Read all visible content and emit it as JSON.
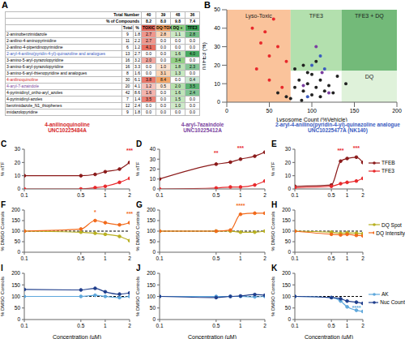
{
  "table": {
    "panel": "A",
    "summary": [
      {
        "label": "Total Number",
        "values": [
          "40",
          "39",
          "48",
          "36"
        ]
      },
      {
        "label": "% of Compounds",
        "values": [
          "8.2",
          "8.0",
          "9.8",
          "7.4"
        ]
      }
    ],
    "columns": [
      {
        "label": "Total"
      },
      {
        "label": "%"
      },
      {
        "label": "TOXIC",
        "color": "#e8685a"
      },
      {
        "label": "DQ-TOX",
        "color": "#f4a261"
      },
      {
        "label": "DQ +",
        "color": "#8cce7e"
      },
      {
        "label": "TFE3",
        "color": "#3ea55a"
      }
    ],
    "rows": [
      {
        "name": "2-aminobenzimidazole",
        "values": [
          "9",
          "1.8",
          "2.7",
          "2.8",
          "1.1",
          "2.8"
        ]
      },
      {
        "name": "2-anilino-4-aminopyrimidine",
        "values": [
          "11",
          "2.2",
          "2.7",
          "0.0",
          "0.0",
          "0.0"
        ]
      },
      {
        "name": "2-anilino-4-piperidinopyrimidine",
        "values": [
          "6",
          "1.2",
          "4.1",
          "0.0",
          "0.0",
          "0.0"
        ]
      },
      {
        "name": "2-aryl-4-anilino(pyridin-4-yl)-quinazoline and analogues",
        "color": "#3a5bbf",
        "values": [
          "13",
          "2.7",
          "0.0",
          "0.0",
          "1.6",
          "4.0"
        ]
      },
      {
        "name": "3-amino-5-aryl-pyrazolopyridine",
        "values": [
          "16",
          "3.2",
          "2.0",
          "0.0",
          "3.4",
          "0.0"
        ]
      },
      {
        "name": "3-amino-6-aryl-pyrazolopyridine",
        "values": [
          "16",
          "3.3",
          "0.0",
          "1.0",
          "1.8",
          "2.3"
        ]
      },
      {
        "name": "3-amino-6-aryl-thienopyridine and analogues",
        "values": [
          "8",
          "1.6",
          "0.0",
          "3.1",
          "1.3",
          "0.0"
        ]
      },
      {
        "name": "4-anilinoquinoline",
        "color": "#d62728",
        "values": [
          "30",
          "6.1",
          "3.8",
          "8.4",
          "0.0",
          "0.4"
        ]
      },
      {
        "name": "4-aryl-7-azaindole",
        "color": "#7b3fa0",
        "values": [
          "20",
          "4.1",
          "1.2",
          "0.5",
          "2.0",
          "3.5"
        ]
      },
      {
        "name": "4-pyrimidinyl_ortho-aryl_azoles",
        "values": [
          "42",
          "8.6",
          "1.6",
          "0.0",
          "1.6",
          "2.4"
        ]
      },
      {
        "name": "4-pyrimidinyl-azoles",
        "values": [
          "7",
          "1.4",
          "3.5",
          "0.0",
          "1.5",
          "0.0"
        ]
      },
      {
        "name": "benzimidazole_N1_thiophenes",
        "values": [
          "12",
          "2.4",
          "0.0",
          "0.0",
          "1.0",
          "0.0"
        ]
      },
      {
        "name": "imidazolopyridine",
        "values": [
          "9",
          "1.8",
          "0.0",
          "0.0",
          "0.0",
          "0.0"
        ]
      }
    ]
  },
  "chart_data": [
    {
      "panel": "B",
      "type": "scatter",
      "x_label": "Lysosome Count (%Vehicle)",
      "y_label": "nTFE3 (%)",
      "xlim": [
        0,
        200
      ],
      "xticks": [
        0,
        50,
        100,
        150,
        200
      ],
      "ylim": [
        0,
        50
      ],
      "yticks": [
        0,
        10,
        20,
        30,
        40,
        50
      ],
      "regions": [
        {
          "label": "Lyso-Toxic",
          "x": [
            0,
            75
          ],
          "y": [
            0,
            50
          ],
          "color": "#f9b98a"
        },
        {
          "label": "TFE3",
          "x": [
            75,
            135
          ],
          "y": [
            17,
            50
          ],
          "color": "#a6dba0"
        },
        {
          "label": "TFE3 + DQ",
          "x": [
            135,
            200
          ],
          "y": [
            17,
            50
          ],
          "color": "#5aae61"
        },
        {
          "label": "DQ",
          "x": [
            135,
            200
          ],
          "y": [
            0,
            17
          ],
          "color": "#d9f0d3"
        }
      ],
      "series": [
        {
          "color": "#222222",
          "x": [
            60,
            70,
            80,
            85,
            90,
            95,
            100,
            100,
            105,
            110,
            110,
            115,
            120,
            125,
            80,
            90,
            105,
            130,
            75,
            95,
            140,
            88
          ],
          "y": [
            5,
            3,
            8,
            12,
            6,
            10,
            4,
            15,
            8,
            12,
            3,
            6,
            9,
            5,
            18,
            20,
            22,
            14,
            2,
            16,
            10,
            1
          ]
        },
        {
          "color": "#e8282b",
          "x": [
            30,
            40,
            45,
            50,
            55,
            35,
            60,
            50,
            70,
            65
          ],
          "y": [
            40,
            32,
            38,
            25,
            45,
            18,
            30,
            12,
            22,
            8
          ]
        },
        {
          "color": "#3a5bbf",
          "x": [
            100,
            110,
            115,
            95
          ],
          "y": [
            20,
            25,
            18,
            3
          ]
        },
        {
          "color": "#7b3fa0",
          "x": [
            105,
            120,
            90,
            112
          ],
          "y": [
            30,
            5,
            9,
            16
          ]
        }
      ]
    },
    {
      "panel": "C",
      "type": "line",
      "title": "4-anilinoquinoline",
      "subtitle": "UNC10225484A",
      "color": "#d62728",
      "y_label": "% nTF",
      "log": "x",
      "x": [
        0.1,
        0.5,
        0.75,
        1,
        1.5,
        2
      ],
      "xlim": [
        0.1,
        2
      ],
      "xticks": [
        0.1,
        0.5,
        1,
        2
      ],
      "ylim": [
        0,
        30
      ],
      "yticks": [
        0,
        10,
        20,
        30
      ],
      "series": [
        {
          "color": "#8b1a1a",
          "marker": "circle",
          "values": [
            10,
            10,
            11,
            13,
            15,
            20
          ]
        },
        {
          "color": "#e8282b",
          "marker": "circle",
          "values": [
            0,
            0,
            1,
            2,
            5,
            8
          ]
        }
      ],
      "annotations": [
        {
          "x": 2,
          "y": 24,
          "text": "***",
          "color": "#e8282b"
        }
      ]
    },
    {
      "panel": "D",
      "type": "line",
      "title": "4-aryl-7azaindole",
      "subtitle": "UNC10225412A",
      "color": "#7b3fa0",
      "y_label": "% nTF",
      "log": "x",
      "x": [
        0.1,
        0.5,
        0.75,
        1,
        1.5,
        2
      ],
      "xlim": [
        0.1,
        2
      ],
      "xticks": [
        0.1,
        0.5,
        1,
        2
      ],
      "ylim": [
        0,
        40
      ],
      "yticks": [
        0,
        10,
        20,
        30,
        40
      ],
      "series": [
        {
          "color": "#8b1a1a",
          "marker": "circle",
          "values": [
            10,
            25,
            27,
            30,
            33,
            37
          ]
        },
        {
          "color": "#e8282b",
          "marker": "circle",
          "values": [
            0,
            1,
            2,
            2,
            4,
            8
          ]
        }
      ],
      "annotations": [
        {
          "x": 0.5,
          "y": 29,
          "text": "**",
          "color": "#e8282b"
        },
        {
          "x": 1,
          "y": 34,
          "text": "***",
          "color": "#e8282b"
        }
      ]
    },
    {
      "panel": "E",
      "type": "line",
      "title": "2-aryl-4-anilino(pyridin-4-yl)-quinazoline analogue",
      "subtitle": "UNC10225477A (NK140)",
      "color": "#3a5bbf",
      "y_label": "% nTF",
      "log": "x",
      "legend": "right",
      "x": [
        0.1,
        0.5,
        0.75,
        1,
        1.5,
        2
      ],
      "xlim": [
        0.1,
        2
      ],
      "xticks": [
        0.1,
        0.5,
        1,
        2
      ],
      "ylim": [
        0,
        30
      ],
      "yticks": [
        0,
        10,
        20,
        30
      ],
      "series": [
        {
          "name": "TFEB",
          "color": "#8b1a1a",
          "marker": "circle",
          "values": [
            2,
            3,
            21,
            23,
            24,
            20
          ]
        },
        {
          "name": "TFE3",
          "color": "#e8282b",
          "marker": "circle",
          "values": [
            1,
            2,
            4,
            5,
            6,
            8
          ]
        }
      ],
      "annotations": [
        {
          "x": 0.75,
          "y": 24,
          "text": "***",
          "color": "#e8282b"
        },
        {
          "x": 1.5,
          "y": 26,
          "text": "***",
          "color": "#e8282b"
        }
      ]
    },
    {
      "panel": "F",
      "type": "line",
      "y_label": "% DMSO Controls",
      "log": "x",
      "x": [
        0.1,
        0.5,
        0.75,
        1,
        1.5,
        2
      ],
      "xlim": [
        0.1,
        2
      ],
      "xticks": [
        0.1,
        0.5,
        1,
        2
      ],
      "ylim": [
        0,
        200
      ],
      "yticks": [
        0,
        50,
        100,
        150,
        200
      ],
      "reference": 100,
      "series": [
        {
          "color": "#b8b020",
          "marker": "circle",
          "values": [
            100,
            95,
            90,
            85,
            75,
            55
          ]
        },
        {
          "color": "#f26a1b",
          "marker": "circle",
          "values": [
            100,
            110,
            150,
            140,
            130,
            140
          ]
        }
      ],
      "annotations": [
        {
          "x": 0.75,
          "y": 158,
          "text": "*",
          "color": "#f26a1b"
        },
        {
          "x": 2,
          "y": 150,
          "text": "***",
          "color": "#f26a1b"
        }
      ]
    },
    {
      "panel": "G",
      "type": "line",
      "y_label": "% DMSO Controls",
      "log": "x",
      "x": [
        0.1,
        0.5,
        0.75,
        1,
        1.5,
        2
      ],
      "xlim": [
        0.1,
        2
      ],
      "xticks": [
        0.1,
        0.5,
        1,
        2
      ],
      "ylim": [
        0,
        200
      ],
      "yticks": [
        0,
        50,
        100,
        150,
        200
      ],
      "reference": 100,
      "series": [
        {
          "color": "#b8b020",
          "marker": "circle",
          "values": [
            100,
            100,
            100,
            95,
            95,
            100
          ]
        },
        {
          "color": "#f26a1b",
          "marker": "circle",
          "values": [
            100,
            100,
            105,
            180,
            185,
            185
          ]
        }
      ],
      "annotations": [
        {
          "x": 1,
          "y": 188,
          "text": "****",
          "color": "#f26a1b"
        }
      ]
    },
    {
      "panel": "H",
      "type": "line",
      "y_label": "% DMSO Controls",
      "log": "x",
      "legend": "right",
      "x": [
        0.1,
        0.5,
        0.75,
        1,
        1.5,
        2
      ],
      "xlim": [
        0.1,
        2
      ],
      "xticks": [
        0.1,
        0.5,
        1,
        2
      ],
      "ylim": [
        0,
        200
      ],
      "yticks": [
        0,
        50,
        100,
        150,
        200
      ],
      "reference": 100,
      "series": [
        {
          "name": "DQ Spot",
          "color": "#b8b020",
          "marker": "circle",
          "values": [
            100,
            95,
            90,
            92,
            90,
            88
          ]
        },
        {
          "name": "DQ Intensity",
          "color": "#f26a1b",
          "marker": "circle",
          "values": [
            100,
            85,
            82,
            85,
            80,
            78
          ]
        }
      ]
    },
    {
      "panel": "I",
      "type": "line",
      "y_label": "% DMSO Controls",
      "x_label": "Concentration (µM)",
      "log": "x",
      "x": [
        0.1,
        0.5,
        0.75,
        1,
        1.5,
        2
      ],
      "xlim": [
        0.1,
        2
      ],
      "xticks": [
        0.1,
        0.5,
        1,
        2
      ],
      "ylim": [
        0,
        200
      ],
      "yticks": [
        0,
        50,
        100,
        150,
        200
      ],
      "reference": 100,
      "series": [
        {
          "color": "#5fa8dc",
          "marker": "circle",
          "values": [
            100,
            100,
            105,
            100,
            95,
            100
          ]
        },
        {
          "color": "#1f3e8c",
          "marker": "circle",
          "values": [
            130,
            128,
            135,
            120,
            110,
            115
          ]
        }
      ]
    },
    {
      "panel": "J",
      "type": "line",
      "y_label": "% DMSO Controls",
      "x_label": "Concentration (µM)",
      "log": "x",
      "x": [
        0.1,
        0.5,
        0.75,
        1,
        1.5,
        2
      ],
      "xlim": [
        0.1,
        2
      ],
      "xticks": [
        0.1,
        0.5,
        1,
        2
      ],
      "ylim": [
        0,
        200
      ],
      "yticks": [
        0,
        50,
        100,
        150,
        200
      ],
      "reference": 100,
      "series": [
        {
          "color": "#5fa8dc",
          "marker": "circle",
          "values": [
            100,
            100,
            100,
            100,
            98,
            100
          ]
        },
        {
          "color": "#1f3e8c",
          "marker": "circle",
          "values": [
            100,
            95,
            100,
            102,
            108,
            105
          ]
        }
      ]
    },
    {
      "panel": "K",
      "type": "line",
      "y_label": "% DMSO Controls",
      "x_label": "Concentration (µM)",
      "log": "x",
      "legend": "right",
      "x": [
        0.1,
        0.5,
        0.75,
        1,
        1.5,
        2
      ],
      "xlim": [
        0.1,
        2
      ],
      "xticks": [
        0.1,
        0.5,
        1,
        2
      ],
      "ylim": [
        0,
        200
      ],
      "yticks": [
        0,
        50,
        100,
        150,
        200
      ],
      "reference": 100,
      "series": [
        {
          "name": "AK",
          "color": "#5fa8dc",
          "marker": "circle",
          "values": [
            100,
            95,
            80,
            55,
            40,
            35
          ]
        },
        {
          "name": "Nuc Count",
          "color": "#1f3e8c",
          "marker": "circle",
          "values": [
            100,
            95,
            90,
            80,
            75,
            70
          ]
        }
      ],
      "annotations": [
        {
          "x": 1.5,
          "y": 20,
          "text": "****",
          "color": "#5fa8dc"
        }
      ]
    }
  ]
}
